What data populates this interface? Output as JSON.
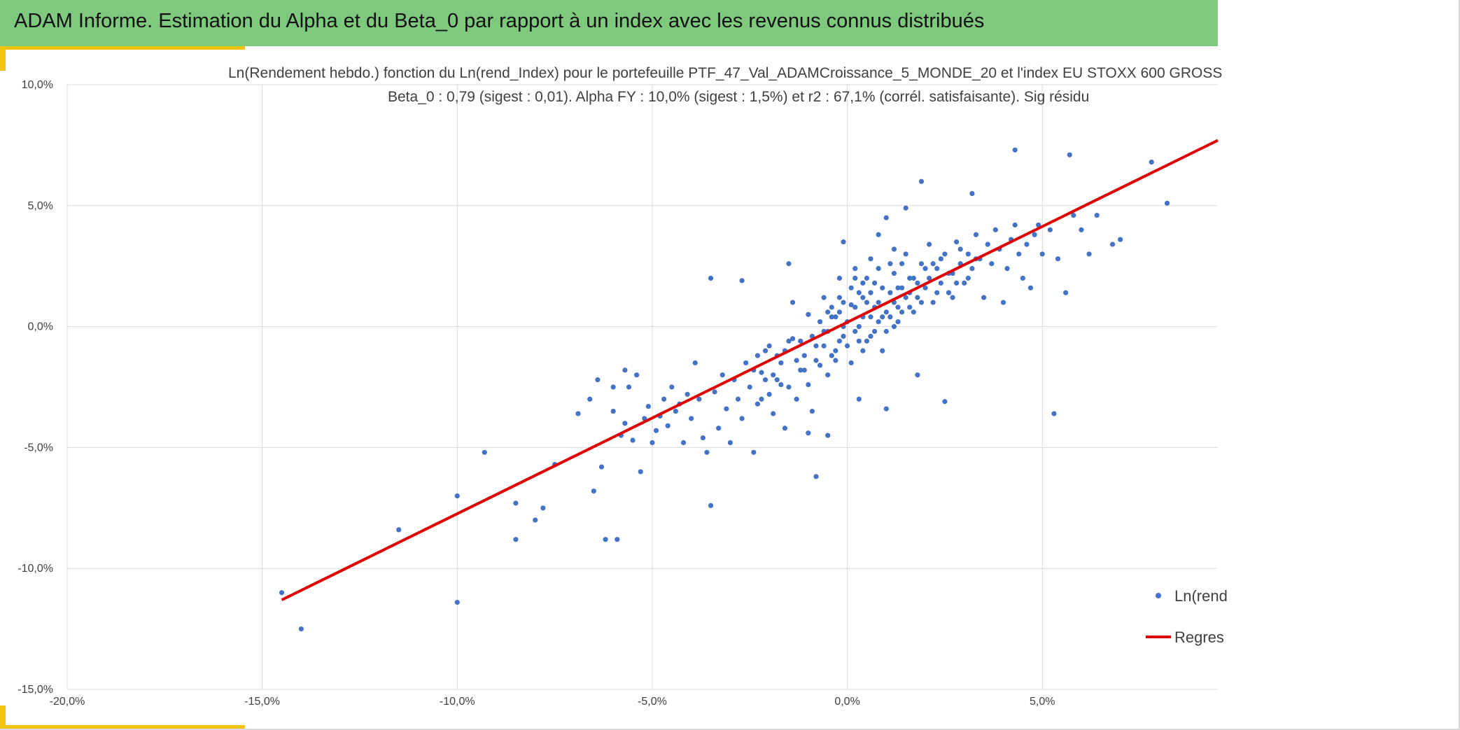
{
  "header": {
    "title": "ADAM Informe. Estimation du Alpha et du Beta_0 par rapport à un index avec les revenus connus distribués"
  },
  "colors": {
    "header_bg": "#7fc97f",
    "accent": "#f2c40f",
    "scatter": "#4472c4",
    "regression": "#e00000"
  },
  "chart_data": {
    "type": "scatter",
    "title": "Ln(Rendement hebdo.) fonction du Ln(rend_Index) pour le portefeuille PTF_47_Val_ADAMCroissance_5_MONDE_20 et l'index EU STOXX 600 GROSS",
    "subtitle": "Beta_0 : 0,79 (sigest : 0,01). Alpha FY : 10,0% (sigest : 1,5%) et r2 : 67,1% (corrél. satisfaisante). Sig résidu",
    "xlabel": "",
    "ylabel": "",
    "xlim": [
      -0.2,
      0.095
    ],
    "ylim": [
      -0.15,
      0.1
    ],
    "x_ticks": [
      -0.2,
      -0.15,
      -0.1,
      -0.05,
      0.0,
      0.05
    ],
    "x_tick_labels": [
      "-20,0%",
      "-15,0%",
      "-10,0%",
      "-5,0%",
      "0,0%",
      "5,0%"
    ],
    "y_ticks": [
      0.1,
      0.05,
      0.0,
      -0.05,
      -0.1,
      -0.15
    ],
    "y_tick_labels": [
      "10,0%",
      "5,0%",
      "0,0%",
      "-5,0%",
      "-10,0%",
      "-15,0%"
    ],
    "grid": true,
    "legend_position": "right",
    "series": [
      {
        "name": "Ln(rend",
        "kind": "scatter",
        "points": [
          [
            -0.145,
            -0.11
          ],
          [
            -0.14,
            -0.125
          ],
          [
            -0.115,
            -0.084
          ],
          [
            -0.1,
            -0.07
          ],
          [
            -0.1,
            -0.114
          ],
          [
            -0.093,
            -0.052
          ],
          [
            -0.085,
            -0.073
          ],
          [
            -0.085,
            -0.088
          ],
          [
            -0.08,
            -0.08
          ],
          [
            -0.078,
            -0.075
          ],
          [
            -0.075,
            -0.057
          ],
          [
            -0.069,
            -0.036
          ],
          [
            -0.066,
            -0.03
          ],
          [
            -0.065,
            -0.068
          ],
          [
            -0.064,
            -0.022
          ],
          [
            -0.063,
            -0.058
          ],
          [
            -0.062,
            -0.088
          ],
          [
            -0.06,
            -0.025
          ],
          [
            -0.06,
            -0.035
          ],
          [
            -0.059,
            -0.088
          ],
          [
            -0.058,
            -0.045
          ],
          [
            -0.057,
            -0.018
          ],
          [
            -0.057,
            -0.04
          ],
          [
            -0.056,
            -0.025
          ],
          [
            -0.055,
            -0.047
          ],
          [
            -0.054,
            -0.02
          ],
          [
            -0.053,
            -0.06
          ],
          [
            -0.052,
            -0.038
          ],
          [
            -0.051,
            -0.033
          ],
          [
            -0.05,
            -0.048
          ],
          [
            -0.049,
            -0.043
          ],
          [
            -0.048,
            -0.037
          ],
          [
            -0.047,
            -0.03
          ],
          [
            -0.046,
            -0.041
          ],
          [
            -0.045,
            -0.025
          ],
          [
            -0.044,
            -0.035
          ],
          [
            -0.043,
            -0.032
          ],
          [
            -0.042,
            -0.048
          ],
          [
            -0.041,
            -0.028
          ],
          [
            -0.04,
            -0.038
          ],
          [
            -0.039,
            -0.015
          ],
          [
            -0.038,
            -0.03
          ],
          [
            -0.037,
            -0.046
          ],
          [
            -0.036,
            -0.052
          ],
          [
            -0.035,
            -0.074
          ],
          [
            -0.034,
            -0.027
          ],
          [
            -0.033,
            -0.042
          ],
          [
            -0.032,
            -0.02
          ],
          [
            -0.031,
            -0.034
          ],
          [
            -0.03,
            -0.048
          ],
          [
            -0.029,
            -0.022
          ],
          [
            -0.028,
            -0.03
          ],
          [
            -0.027,
            -0.038
          ],
          [
            -0.026,
            -0.015
          ],
          [
            -0.025,
            -0.025
          ],
          [
            -0.024,
            -0.052
          ],
          [
            -0.023,
            -0.032
          ],
          [
            -0.022,
            -0.019
          ],
          [
            -0.021,
            -0.01
          ],
          [
            -0.02,
            -0.028
          ],
          [
            -0.019,
            -0.036
          ],
          [
            -0.018,
            -0.022
          ],
          [
            -0.017,
            -0.015
          ],
          [
            -0.016,
            -0.042
          ],
          [
            -0.015,
            -0.025
          ],
          [
            -0.014,
            -0.005
          ],
          [
            -0.013,
            -0.03
          ],
          [
            -0.012,
            -0.018
          ],
          [
            -0.011,
            -0.012
          ],
          [
            -0.01,
            -0.024
          ],
          [
            -0.009,
            -0.035
          ],
          [
            -0.008,
            -0.008
          ],
          [
            -0.007,
            -0.016
          ],
          [
            -0.006,
            -0.002
          ],
          [
            -0.005,
            -0.02
          ],
          [
            -0.004,
            0.004
          ],
          [
            -0.003,
            -0.01
          ],
          [
            -0.002,
            0.006
          ],
          [
            -0.001,
            -0.004
          ],
          [
            0.0,
            0.002
          ],
          [
            0.001,
            -0.015
          ],
          [
            0.002,
            0.008
          ],
          [
            0.003,
            0.0
          ],
          [
            0.004,
            0.012
          ],
          [
            0.005,
            -0.006
          ],
          [
            0.006,
            0.004
          ],
          [
            0.007,
            0.018
          ],
          [
            0.008,
            0.01
          ],
          [
            0.009,
            -0.01
          ],
          [
            0.01,
            0.006
          ],
          [
            0.011,
            0.014
          ],
          [
            0.012,
            0.022
          ],
          [
            0.013,
            0.002
          ],
          [
            0.014,
            0.016
          ],
          [
            0.015,
            0.03
          ],
          [
            0.016,
            0.008
          ],
          [
            0.017,
            0.02
          ],
          [
            0.018,
            0.012
          ],
          [
            0.019,
            0.026
          ],
          [
            0.02,
            0.016
          ],
          [
            0.021,
            0.034
          ],
          [
            0.022,
            0.01
          ],
          [
            0.023,
            0.024
          ],
          [
            0.024,
            0.018
          ],
          [
            0.025,
            0.03
          ],
          [
            0.026,
            0.014
          ],
          [
            0.027,
            0.022
          ],
          [
            0.028,
            0.035
          ],
          [
            0.029,
            0.026
          ],
          [
            0.03,
            0.018
          ],
          [
            0.031,
            0.03
          ],
          [
            0.032,
            0.024
          ],
          [
            0.033,
            0.038
          ],
          [
            0.034,
            0.028
          ],
          [
            0.035,
            0.012
          ],
          [
            0.036,
            0.034
          ],
          [
            0.037,
            0.026
          ],
          [
            0.038,
            0.04
          ],
          [
            0.039,
            0.032
          ],
          [
            0.04,
            0.01
          ],
          [
            0.041,
            0.024
          ],
          [
            0.042,
            0.036
          ],
          [
            0.043,
            0.042
          ],
          [
            0.044,
            0.03
          ],
          [
            0.045,
            0.02
          ],
          [
            0.046,
            0.034
          ],
          [
            0.047,
            0.016
          ],
          [
            0.048,
            0.038
          ],
          [
            0.049,
            0.042
          ],
          [
            0.05,
            0.03
          ],
          [
            0.052,
            0.04
          ],
          [
            0.053,
            -0.036
          ],
          [
            0.054,
            0.028
          ],
          [
            0.056,
            0.014
          ],
          [
            0.058,
            0.046
          ],
          [
            0.06,
            0.04
          ],
          [
            0.062,
            0.03
          ],
          [
            0.064,
            0.046
          ],
          [
            0.068,
            0.034
          ],
          [
            0.07,
            0.036
          ],
          [
            0.078,
            0.068
          ],
          [
            0.082,
            0.051
          ],
          [
            0.057,
            0.071
          ],
          [
            0.043,
            0.073
          ],
          [
            0.032,
            0.055
          ],
          [
            0.019,
            0.06
          ],
          [
            0.015,
            0.049
          ],
          [
            -0.001,
            0.035
          ],
          [
            -0.015,
            0.026
          ],
          [
            -0.027,
            0.019
          ],
          [
            -0.035,
            0.02
          ],
          [
            -0.015,
            -0.006
          ],
          [
            -0.023,
            -0.012
          ],
          [
            -0.01,
            -0.044
          ],
          [
            -0.008,
            -0.062
          ],
          [
            -0.005,
            -0.045
          ],
          [
            0.003,
            -0.03
          ],
          [
            0.01,
            -0.034
          ],
          [
            0.018,
            -0.02
          ],
          [
            0.025,
            -0.031
          ],
          [
            0.004,
            0.018
          ],
          [
            0.006,
            0.028
          ],
          [
            0.008,
            0.038
          ],
          [
            0.01,
            0.045
          ],
          [
            0.012,
            0.032
          ],
          [
            0.002,
            0.024
          ],
          [
            -0.002,
            0.02
          ],
          [
            -0.006,
            0.012
          ],
          [
            -0.01,
            0.005
          ],
          [
            -0.014,
            0.01
          ],
          [
            0.001,
            0.009
          ],
          [
            0.002,
            -0.002
          ],
          [
            0.003,
            0.014
          ],
          [
            0.004,
            0.004
          ],
          [
            0.005,
            0.01
          ],
          [
            0.006,
            -0.004
          ],
          [
            0.007,
            0.008
          ],
          [
            0.008,
            0.002
          ],
          [
            0.009,
            0.016
          ],
          [
            0.01,
            -0.002
          ],
          [
            -0.001,
            0.01
          ],
          [
            -0.002,
            -0.006
          ],
          [
            -0.003,
            0.004
          ],
          [
            -0.004,
            -0.012
          ],
          [
            -0.005,
            0.006
          ],
          [
            0.011,
            0.004
          ],
          [
            0.012,
            0.01
          ],
          [
            0.013,
            0.016
          ],
          [
            0.014,
            0.006
          ],
          [
            0.015,
            0.012
          ],
          [
            0.016,
            0.02
          ],
          [
            0.017,
            0.006
          ],
          [
            0.018,
            0.018
          ],
          [
            0.019,
            0.01
          ],
          [
            0.02,
            0.024
          ],
          [
            -0.006,
            -0.008
          ],
          [
            -0.007,
            0.002
          ],
          [
            -0.008,
            -0.014
          ],
          [
            -0.009,
            -0.004
          ],
          [
            -0.011,
            -0.018
          ],
          [
            -0.012,
            -0.006
          ],
          [
            -0.013,
            -0.014
          ],
          [
            -0.016,
            -0.01
          ],
          [
            -0.017,
            -0.024
          ],
          [
            -0.018,
            -0.012
          ],
          [
            -0.019,
            -0.02
          ],
          [
            -0.02,
            -0.008
          ],
          [
            -0.021,
            -0.022
          ],
          [
            -0.022,
            -0.03
          ],
          [
            -0.024,
            -0.018
          ],
          [
            0.021,
            0.02
          ],
          [
            0.022,
            0.026
          ],
          [
            0.023,
            0.014
          ],
          [
            0.024,
            0.028
          ],
          [
            0.026,
            0.022
          ],
          [
            0.027,
            0.012
          ],
          [
            0.028,
            0.018
          ],
          [
            0.029,
            0.032
          ],
          [
            0.031,
            0.02
          ],
          [
            0.033,
            0.028
          ],
          [
            0.0,
            -0.008
          ],
          [
            0.001,
            0.016
          ],
          [
            0.002,
            0.02
          ],
          [
            0.003,
            -0.006
          ],
          [
            0.004,
            -0.01
          ],
          [
            0.005,
            0.02
          ],
          [
            0.006,
            0.014
          ],
          [
            0.007,
            -0.002
          ],
          [
            0.008,
            0.024
          ],
          [
            0.009,
            0.004
          ],
          [
            -0.001,
            0.0
          ],
          [
            -0.002,
            0.012
          ],
          [
            -0.003,
            -0.014
          ],
          [
            -0.004,
            0.008
          ],
          [
            -0.005,
            -0.002
          ],
          [
            0.011,
            0.026
          ],
          [
            0.012,
            0.0
          ],
          [
            0.013,
            0.008
          ],
          [
            0.014,
            0.026
          ],
          [
            0.016,
            0.014
          ]
        ]
      },
      {
        "name": "Regres",
        "kind": "line",
        "points": [
          [
            -0.145,
            -0.113
          ],
          [
            0.095,
            0.077
          ]
        ]
      }
    ]
  }
}
